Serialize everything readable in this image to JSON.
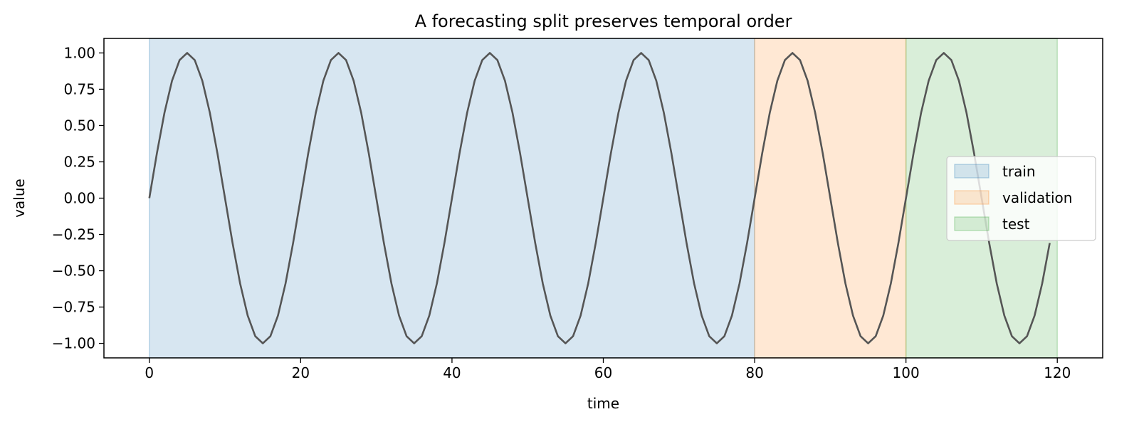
{
  "chart_data": {
    "type": "line",
    "title": "A forecasting split preserves temporal order",
    "xlabel": "time",
    "ylabel": "value",
    "xlim": [
      -6,
      126
    ],
    "ylim": [
      -1.1,
      1.1
    ],
    "xticks": [
      0,
      20,
      40,
      60,
      80,
      100,
      120
    ],
    "xtick_labels": [
      "0",
      "20",
      "40",
      "60",
      "80",
      "100",
      "120"
    ],
    "yticks": [
      1.0,
      0.75,
      0.5,
      0.25,
      0.0,
      -0.25,
      -0.5,
      -0.75,
      -1.0
    ],
    "ytick_labels": [
      "1.00",
      "0.75",
      "0.50",
      "0.25",
      "0.00",
      "−0.25",
      "−0.50",
      "−0.75",
      "−1.00"
    ],
    "grid": false,
    "legend_position": "right",
    "regions": [
      {
        "name": "train",
        "start": 0,
        "end": 80,
        "color": "#1f77b4"
      },
      {
        "name": "validation",
        "start": 80,
        "end": 100,
        "color": "#ff7f0e"
      },
      {
        "name": "test",
        "start": 100,
        "end": 120,
        "color": "#2ca02c"
      }
    ],
    "series": [
      {
        "line_color": "#555555",
        "x": [
          0,
          1,
          2,
          3,
          4,
          5,
          6,
          7,
          8,
          9,
          10,
          11,
          12,
          13,
          14,
          15,
          16,
          17,
          18,
          19,
          20,
          21,
          22,
          23,
          24,
          25,
          26,
          27,
          28,
          29,
          30,
          31,
          32,
          33,
          34,
          35,
          36,
          37,
          38,
          39,
          40,
          41,
          42,
          43,
          44,
          45,
          46,
          47,
          48,
          49,
          50,
          51,
          52,
          53,
          54,
          55,
          56,
          57,
          58,
          59,
          60,
          61,
          62,
          63,
          64,
          65,
          66,
          67,
          68,
          69,
          70,
          71,
          72,
          73,
          74,
          75,
          76,
          77,
          78,
          79,
          80,
          81,
          82,
          83,
          84,
          85,
          86,
          87,
          88,
          89,
          90,
          91,
          92,
          93,
          94,
          95,
          96,
          97,
          98,
          99,
          100,
          101,
          102,
          103,
          104,
          105,
          106,
          107,
          108,
          109,
          110,
          111,
          112,
          113,
          114,
          115,
          116,
          117,
          118,
          119
        ],
        "y": [
          0,
          0.309,
          0.588,
          0.809,
          0.951,
          1,
          0.951,
          0.809,
          0.588,
          0.309,
          0,
          -0.309,
          -0.588,
          -0.809,
          -0.951,
          -1,
          -0.951,
          -0.809,
          -0.588,
          -0.309,
          0,
          0.309,
          0.588,
          0.809,
          0.951,
          1,
          0.951,
          0.809,
          0.588,
          0.309,
          0,
          -0.309,
          -0.588,
          -0.809,
          -0.951,
          -1,
          -0.951,
          -0.809,
          -0.588,
          -0.309,
          0,
          0.309,
          0.588,
          0.809,
          0.951,
          1,
          0.951,
          0.809,
          0.588,
          0.309,
          0,
          -0.309,
          -0.588,
          -0.809,
          -0.951,
          -1,
          -0.951,
          -0.809,
          -0.588,
          -0.309,
          0,
          0.309,
          0.588,
          0.809,
          0.951,
          1,
          0.951,
          0.809,
          0.588,
          0.309,
          0,
          -0.309,
          -0.588,
          -0.809,
          -0.951,
          -1,
          -0.951,
          -0.809,
          -0.588,
          -0.309,
          0,
          0.309,
          0.588,
          0.809,
          0.951,
          1,
          0.951,
          0.809,
          0.588,
          0.309,
          0,
          -0.309,
          -0.588,
          -0.809,
          -0.951,
          -1,
          -0.951,
          -0.809,
          -0.588,
          -0.309,
          0,
          0.309,
          0.588,
          0.809,
          0.951,
          1,
          0.951,
          0.809,
          0.588,
          0.309,
          0,
          -0.309,
          -0.588,
          -0.809,
          -0.951,
          -1,
          -0.951,
          -0.809,
          -0.588,
          -0.309
        ]
      }
    ]
  }
}
